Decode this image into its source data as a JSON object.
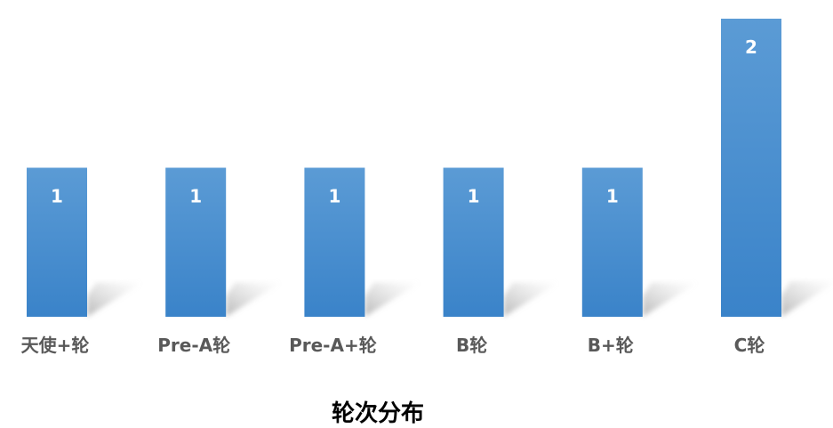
{
  "chart_data": {
    "type": "bar",
    "title": "",
    "xlabel": "轮次分布",
    "ylabel": "",
    "categories": [
      "天使+轮",
      "Pre-A轮",
      "Pre-A+轮",
      "B轮",
      "B+轮",
      "C轮"
    ],
    "values": [
      1,
      1,
      1,
      1,
      1,
      2
    ],
    "ylim": [
      0,
      2
    ],
    "grid": false,
    "legend": "none",
    "data_labels": true,
    "colors": {
      "bar_top": "#5b9bd5",
      "bar_bottom": "#3a83c9",
      "label": "#595959",
      "data_label": "#ffffff"
    }
  }
}
